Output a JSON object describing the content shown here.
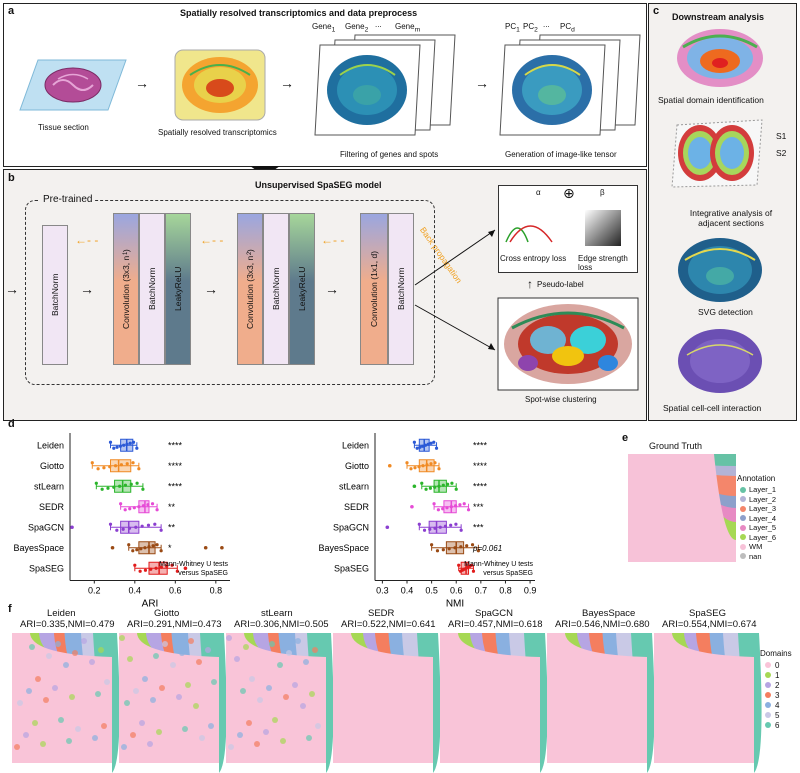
{
  "panel_a": {
    "letter": "a",
    "title": "Spatially resolved transcriptomics and data preprocess",
    "tissue_label": "Tissue section",
    "srt_label": "Spatially resolved transcriptomics",
    "gene1": "Gene",
    "gene1_sub": "1",
    "gene2": "Gene",
    "gene2_sub": "2",
    "dots": "...",
    "genem": "Gene",
    "genem_sub": "m",
    "filter_label": "Filtering of genes and spots",
    "pc1": "PC",
    "pc1_sub": "1",
    "pc2": "PC",
    "pc2_sub": "2",
    "pcd": "PC",
    "pcd_sub": "d",
    "tensor_label": "Generation of image-like tensor"
  },
  "panel_b": {
    "letter": "b",
    "title": "Unsupervised SpaSEG model",
    "pretrained": "Pre-trained",
    "batchnorm": "BatchNorm",
    "conv1": "Convolution (3x3, n",
    "conv1_sub": "1",
    "conv2": "Convolution (3x3, n",
    "conv2_sub": "2",
    "conv3": "Convolution (1x1, d)",
    "leaky": "LeakyReLU",
    "back_prop": "Back propagation",
    "alpha": "α",
    "beta": "β",
    "ce_loss": "Cross entropy loss",
    "edge_loss": "Edge strength loss",
    "pseudo_label": "Pseudo-label",
    "clustering": "Spot-wise clustering"
  },
  "panel_c": {
    "letter": "c",
    "title": "Downstream analysis",
    "items": [
      "Spatial domain identification",
      "Integrative analysis of adjacent sections",
      "SVG detection",
      "Spatial cell-cell interaction"
    ],
    "s1": "S1",
    "s2": "S2"
  },
  "panel_d": {
    "letter": "d",
    "methods": [
      "Leiden",
      "Giotto",
      "stLearn",
      "SEDR",
      "SpaGCN",
      "BayesSpace",
      "SpaSEG"
    ],
    "colors": [
      "#2b59d6",
      "#f08a24",
      "#2bb52b",
      "#e64bd6",
      "#8b3fd0",
      "#9a4a14",
      "#e11c1c"
    ],
    "sig_ari": [
      "****",
      "****",
      "****",
      "**",
      "**",
      "*",
      ""
    ],
    "sig_nmi": [
      "****",
      "****",
      "****",
      "***",
      "***",
      "p=0.061",
      ""
    ],
    "test_note_1": "Mann-Whitney U tests",
    "test_note_2": "versus SpaSEG",
    "ari_label": "ARI",
    "nmi_label": "NMI",
    "ari_ticks": [
      "0.2",
      "0.4",
      "0.6",
      "0.8"
    ],
    "nmi_ticks": [
      "0.3",
      "0.4",
      "0.5",
      "0.6",
      "0.7",
      "0.8",
      "0.9"
    ]
  },
  "chart_data": [
    {
      "type": "box",
      "xlabel": "ARI",
      "xlim": [
        0.08,
        0.87
      ],
      "categories": [
        "Leiden",
        "Giotto",
        "stLearn",
        "SEDR",
        "SpaGCN",
        "BayesSpace",
        "SpaSEG"
      ],
      "boxes": [
        {
          "q1": 0.33,
          "median": 0.36,
          "q3": 0.39,
          "wlo": 0.28,
          "whi": 0.41
        },
        {
          "q1": 0.28,
          "median": 0.32,
          "q3": 0.38,
          "wlo": 0.19,
          "whi": 0.42
        },
        {
          "q1": 0.3,
          "median": 0.34,
          "q3": 0.38,
          "wlo": 0.21,
          "whi": 0.44
        },
        {
          "q1": 0.42,
          "median": 0.45,
          "q3": 0.47,
          "wlo": 0.33,
          "whi": 0.51
        },
        {
          "q1": 0.33,
          "median": 0.37,
          "q3": 0.42,
          "wlo": 0.28,
          "whi": 0.53
        },
        {
          "q1": 0.42,
          "median": 0.47,
          "q3": 0.5,
          "wlo": 0.37,
          "whi": 0.53
        },
        {
          "q1": 0.47,
          "median": 0.52,
          "q3": 0.56,
          "wlo": 0.4,
          "whi": 0.61
        }
      ],
      "outliers": [
        [],
        [],
        [],
        [],
        [
          0.09
        ],
        [
          0.29,
          0.75,
          0.83
        ],
        [
          0.65
        ]
      ]
    },
    {
      "type": "box",
      "xlabel": "NMI",
      "xlim": [
        0.27,
        0.92
      ],
      "categories": [
        "Leiden",
        "Giotto",
        "stLearn",
        "SEDR",
        "SpaGCN",
        "BayesSpace",
        "SpaSEG"
      ],
      "boxes": [
        {
          "q1": 0.45,
          "median": 0.47,
          "q3": 0.49,
          "wlo": 0.43,
          "whi": 0.52
        },
        {
          "q1": 0.45,
          "median": 0.48,
          "q3": 0.51,
          "wlo": 0.4,
          "whi": 0.53
        },
        {
          "q1": 0.51,
          "median": 0.53,
          "q3": 0.56,
          "wlo": 0.46,
          "whi": 0.6
        },
        {
          "q1": 0.55,
          "median": 0.58,
          "q3": 0.6,
          "wlo": 0.51,
          "whi": 0.65
        },
        {
          "q1": 0.49,
          "median": 0.52,
          "q3": 0.56,
          "wlo": 0.45,
          "whi": 0.62
        },
        {
          "q1": 0.56,
          "median": 0.6,
          "q3": 0.63,
          "wlo": 0.5,
          "whi": 0.69
        },
        {
          "q1": 0.62,
          "median": 0.64,
          "q3": 0.65,
          "wlo": 0.61,
          "whi": 0.67
        }
      ],
      "outliers": [
        [],
        [
          0.33
        ],
        [
          0.43
        ],
        [
          0.42
        ],
        [
          0.32
        ],
        [],
        []
      ]
    }
  ],
  "panel_e": {
    "letter": "e",
    "title": "Ground Truth",
    "legend_title": "Annotation",
    "legend": [
      "Layer_1",
      "Layer_2",
      "Layer_3",
      "Layer_4",
      "Layer_5",
      "Layer_6",
      "WM",
      "nan"
    ],
    "legend_colors": [
      "#66c2a5",
      "#b3b3d6",
      "#f4866b",
      "#8da0cb",
      "#e78ac3",
      "#a6d854",
      "#f7c2d8",
      "#bdbdbd"
    ]
  },
  "panel_f": {
    "letter": "f",
    "maps": [
      {
        "name": "Leiden",
        "scores": "ARI=0.335,NMI=0.479"
      },
      {
        "name": "Giotto",
        "scores": "ARI=0.291,NMI=0.473"
      },
      {
        "name": "stLearn",
        "scores": "ARI=0.306,NMI=0.505"
      },
      {
        "name": "SEDR",
        "scores": "ARI=0.522,NMI=0.641"
      },
      {
        "name": "SpaGCN",
        "scores": "ARI=0.457,NMI=0.618"
      },
      {
        "name": "BayesSpace",
        "scores": "ARI=0.546,NMI=0.680"
      },
      {
        "name": "SpaSEG",
        "scores": "ARI=0.554,NMI=0.674"
      }
    ],
    "legend_title": "Domains",
    "legend": [
      "0",
      "1",
      "2",
      "3",
      "4",
      "5",
      "6"
    ],
    "legend_colors": [
      "#f9c4d8",
      "#a6d854",
      "#b6a5e3",
      "#f47e5f",
      "#8ab0e0",
      "#c9c9e6",
      "#66c9b0"
    ]
  }
}
